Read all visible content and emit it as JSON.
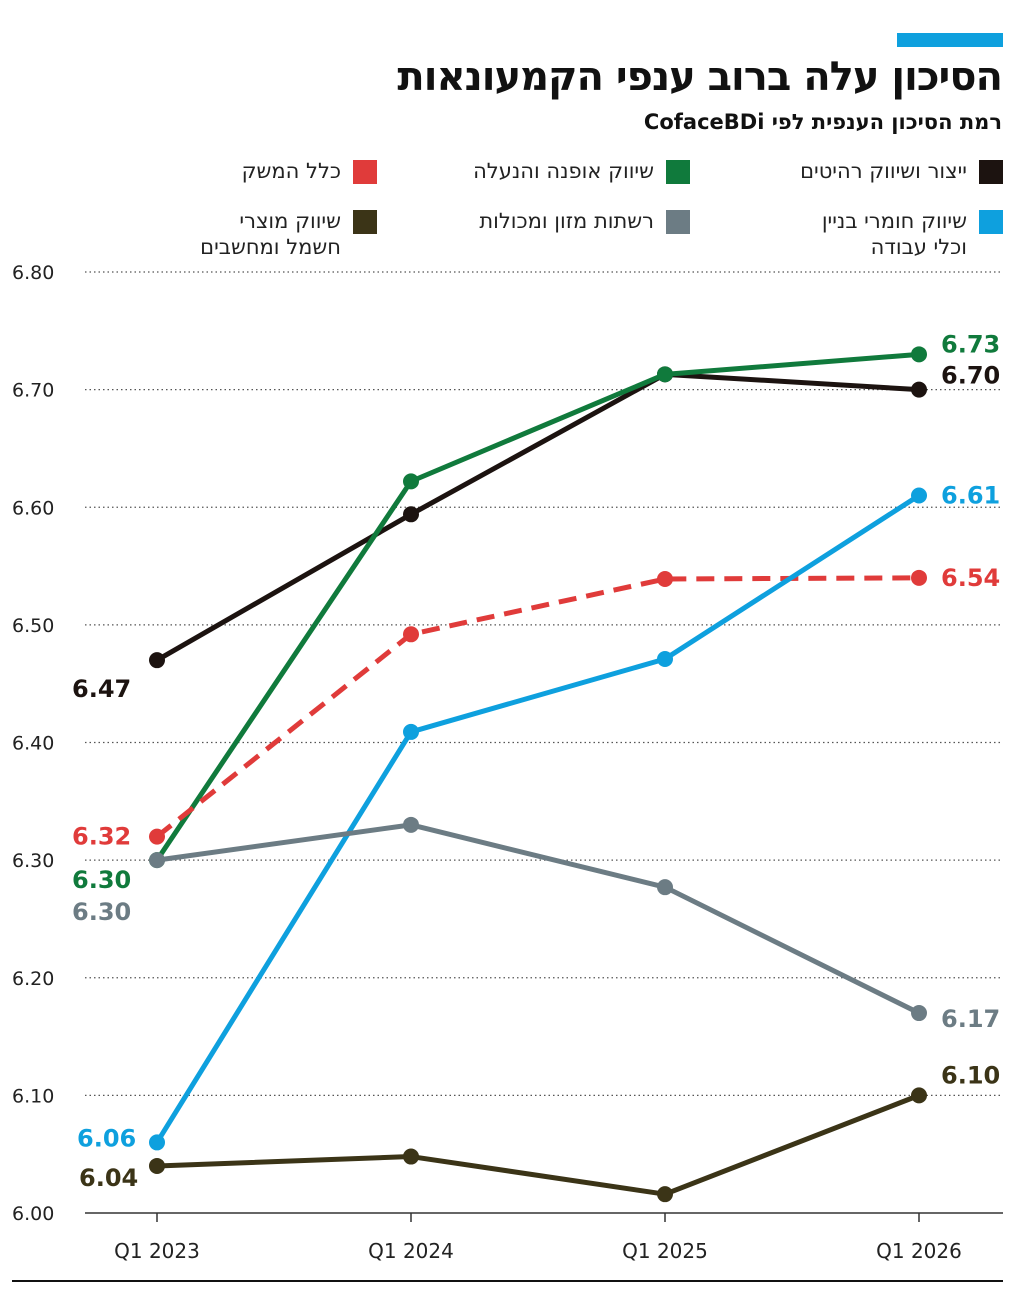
{
  "chart_data": {
    "type": "line",
    "title": "הסיכון עלה ברוב ענפי הקמעונאות",
    "subtitle": "רמת הסיכון הענפית לפי CofaceBDi",
    "categories": [
      "Q1 2023",
      "Q1 2024",
      "Q1 2025",
      "Q1 2026"
    ],
    "ylim": [
      6.0,
      6.8
    ],
    "yticks": [
      {
        "value": 6.0,
        "label": "6.00"
      },
      {
        "value": 6.1,
        "label": "6.10"
      },
      {
        "value": 6.2,
        "label": "6.20"
      },
      {
        "value": 6.3,
        "label": "6.30"
      },
      {
        "value": 6.4,
        "label": "6.40"
      },
      {
        "value": 6.5,
        "label": "6.50"
      },
      {
        "value": 6.6,
        "label": "6.60"
      },
      {
        "value": 6.7,
        "label": "6.70"
      },
      {
        "value": 6.8,
        "label": "6.80"
      }
    ],
    "grid": true,
    "series": [
      {
        "name": "ייצור ושיווק רהיטים",
        "color": "#1c1310",
        "dashed": false,
        "values": [
          6.47,
          6.594,
          6.713,
          6.7
        ],
        "value_labels": [
          "6.47",
          null,
          null,
          "6.70"
        ]
      },
      {
        "name": "שיווק אופנה והנעלה",
        "color": "#107a3c",
        "dashed": false,
        "values": [
          6.3,
          6.622,
          6.713,
          6.73
        ],
        "value_labels": [
          "6.30",
          null,
          null,
          "6.73"
        ]
      },
      {
        "name": "כלל המשק",
        "color": "#e03b3a",
        "dashed": true,
        "values": [
          6.32,
          6.492,
          6.539,
          6.54
        ],
        "value_labels": [
          "6.32",
          null,
          null,
          "6.54"
        ]
      },
      {
        "name": "שיווק חומרי בניין\nוכלי עבודה",
        "color": "#0ea0de",
        "dashed": false,
        "values": [
          6.06,
          6.409,
          6.471,
          6.61
        ],
        "value_labels": [
          "6.06",
          null,
          null,
          "6.61"
        ]
      },
      {
        "name": "רשתות מזון ומכולות",
        "color": "#6c7c84",
        "dashed": false,
        "values": [
          6.3,
          6.33,
          6.277,
          6.17
        ],
        "value_labels": [
          "6.30",
          null,
          null,
          "6.17"
        ]
      },
      {
        "name": "שיווק מוצרי\nחשמל ומחשבים",
        "color": "#3b3417",
        "dashed": false,
        "values": [
          6.04,
          6.048,
          6.016,
          6.1
        ],
        "value_labels": [
          "6.04",
          null,
          null,
          "6.10"
        ]
      }
    ]
  }
}
